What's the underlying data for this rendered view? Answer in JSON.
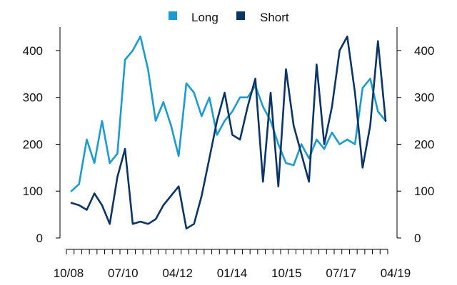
{
  "chart_data": {
    "type": "line",
    "title": "",
    "xlabel": "",
    "ylabel": "",
    "ylim": [
      0,
      450
    ],
    "y_ticks": [
      0,
      100,
      200,
      300,
      400
    ],
    "x_tick_labels": [
      "10/08",
      "07/10",
      "04/12",
      "01/14",
      "10/15",
      "07/17",
      "04/19"
    ],
    "x_range": [
      "2008-10",
      "2019-04"
    ],
    "grid": false,
    "legend_position": "top-center",
    "dual_axis_mirrored": true,
    "x": [
      "2008-10",
      "2009-01",
      "2009-04",
      "2009-07",
      "2009-10",
      "2010-01",
      "2010-04",
      "2010-07",
      "2010-10",
      "2011-01",
      "2011-04",
      "2011-07",
      "2011-10",
      "2012-01",
      "2012-04",
      "2012-07",
      "2012-10",
      "2013-01",
      "2013-04",
      "2013-07",
      "2013-10",
      "2014-01",
      "2014-04",
      "2014-07",
      "2014-10",
      "2015-01",
      "2015-04",
      "2015-07",
      "2015-10",
      "2016-01",
      "2016-04",
      "2016-07",
      "2016-10",
      "2017-01",
      "2017-04",
      "2017-07",
      "2017-10",
      "2018-01",
      "2018-04",
      "2018-07",
      "2018-10",
      "2019-01"
    ],
    "series": [
      {
        "name": "Long",
        "color": "#1b9bcf",
        "values": [
          100,
          115,
          210,
          160,
          250,
          160,
          180,
          380,
          400,
          430,
          360,
          250,
          290,
          240,
          175,
          330,
          310,
          260,
          300,
          220,
          250,
          270,
          300,
          300,
          325,
          280,
          250,
          200,
          160,
          155,
          200,
          170,
          210,
          190,
          225,
          200,
          210,
          200,
          320,
          340,
          270,
          250
        ]
      },
      {
        "name": "Short",
        "color": "#0b3566",
        "values": [
          75,
          70,
          60,
          95,
          70,
          30,
          130,
          190,
          30,
          35,
          30,
          40,
          70,
          90,
          110,
          20,
          30,
          90,
          170,
          250,
          310,
          220,
          210,
          280,
          340,
          120,
          310,
          110,
          360,
          240,
          180,
          120,
          370,
          200,
          280,
          400,
          430,
          310,
          150,
          240,
          420,
          250
        ]
      }
    ]
  }
}
